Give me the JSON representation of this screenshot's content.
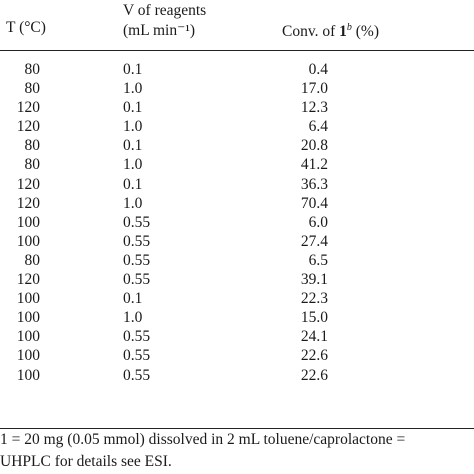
{
  "table": {
    "col_temp_label": "T (°C)",
    "col_v_line1": "V of reagents",
    "col_v_line2": "(mL min⁻¹)",
    "col_conv_prefix": "Conv. of ",
    "col_conv_bold": "1",
    "col_conv_sup": "b",
    "col_conv_suffix": " (%)",
    "rows": [
      {
        "t": "80",
        "v": "0.1",
        "conv": "0.4"
      },
      {
        "t": "80",
        "v": "1.0",
        "conv": "17.0"
      },
      {
        "t": "120",
        "v": "0.1",
        "conv": "12.3"
      },
      {
        "t": "120",
        "v": "1.0",
        "conv": "6.4"
      },
      {
        "t": "80",
        "v": "0.1",
        "conv": "20.8"
      },
      {
        "t": "80",
        "v": "1.0",
        "conv": "41.2"
      },
      {
        "t": "120",
        "v": "0.1",
        "conv": "36.3"
      },
      {
        "t": "120",
        "v": "1.0",
        "conv": "70.4"
      },
      {
        "t": "100",
        "v": "0.55",
        "conv": "6.0"
      },
      {
        "t": "100",
        "v": "0.55",
        "conv": "27.4"
      },
      {
        "t": "80",
        "v": "0.55",
        "conv": "6.5"
      },
      {
        "t": "120",
        "v": "0.55",
        "conv": "39.1"
      },
      {
        "t": "100",
        "v": "0.1",
        "conv": "22.3"
      },
      {
        "t": "100",
        "v": "1.0",
        "conv": "15.0"
      },
      {
        "t": "100",
        "v": "0.55",
        "conv": "24.1"
      },
      {
        "t": "100",
        "v": "0.55",
        "conv": "22.6"
      },
      {
        "t": "100",
        "v": "0.55",
        "conv": "22.6"
      }
    ]
  },
  "footnotes": {
    "line1": "1 = 20 mg (0.05 mmol) dissolved in 2 mL toluene/caprolactone =",
    "line2": "UHPLC for details see ESI."
  }
}
